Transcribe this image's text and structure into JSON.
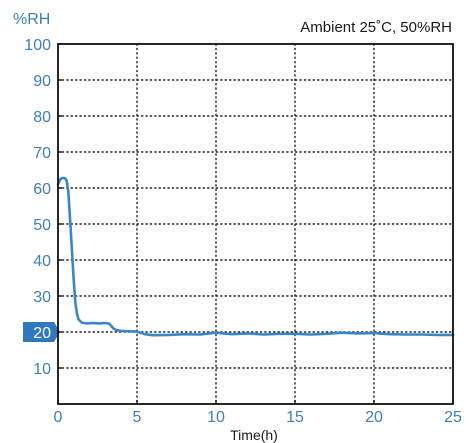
{
  "chart_data": {
    "type": "line",
    "title": "Ambient 25˚C, 50%RH",
    "ylabel": "%RH",
    "xlabel": "Time(h)",
    "xlim": [
      0,
      25
    ],
    "ylim": [
      0,
      100
    ],
    "x_ticks": [
      0,
      5,
      10,
      15,
      20,
      25
    ],
    "y_ticks": [
      10,
      20,
      30,
      40,
      50,
      60,
      70,
      80,
      90,
      100
    ],
    "highlighted_y_tick": 20,
    "grid": true,
    "line_color": "#3a86c8",
    "series": [
      {
        "x": [
          0.0,
          0.15,
          0.3,
          0.45,
          0.55,
          0.65,
          0.8,
          1.0,
          1.1,
          1.2,
          1.3,
          1.5,
          1.8,
          2.2,
          2.6,
          3.0,
          3.25,
          3.5,
          3.7,
          4.0,
          4.5,
          5.0,
          5.5,
          6.0,
          7.0,
          8.0,
          9.0,
          10.0,
          11.0,
          12.0,
          13.0,
          14.0,
          15.0,
          16.0,
          17.0,
          18.0,
          19.0,
          20.0,
          21.0,
          22.0,
          23.0,
          24.0,
          25.0
        ],
        "y": [
          61.0,
          62.5,
          62.8,
          62.7,
          62.0,
          59.0,
          49.0,
          34.0,
          28.0,
          25.0,
          23.5,
          22.6,
          22.4,
          22.5,
          22.4,
          22.5,
          22.3,
          21.0,
          20.5,
          20.3,
          20.2,
          20.1,
          19.4,
          19.1,
          19.2,
          19.4,
          19.3,
          19.8,
          19.4,
          19.6,
          19.3,
          19.5,
          19.5,
          19.3,
          19.5,
          19.8,
          19.6,
          19.7,
          19.4,
          19.3,
          19.3,
          19.2,
          19.2
        ]
      }
    ]
  }
}
